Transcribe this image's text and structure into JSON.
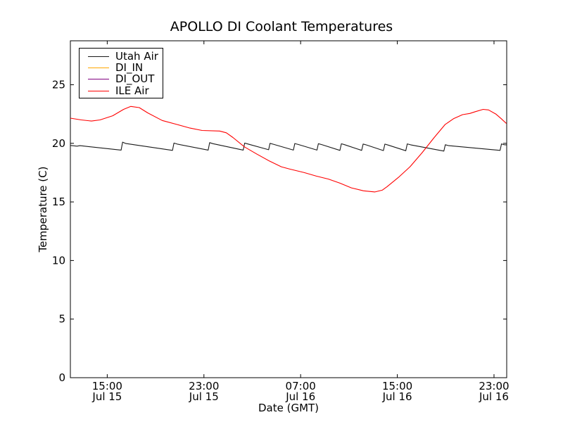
{
  "chart_data": {
    "type": "line",
    "title": "APOLLO DI Coolant Temperatures",
    "xlabel": "Date (GMT)",
    "ylabel": "Temperature (C)",
    "xlim": [
      0,
      36.1
    ],
    "ylim": [
      0,
      28.75
    ],
    "grid": false,
    "legend_position": "upper left",
    "background_color": "#ffffff",
    "spine_color": "#000000",
    "x_ticks": [
      {
        "pos": 3.05,
        "time": "15:00",
        "date": "Jul 15"
      },
      {
        "pos": 11.05,
        "time": "23:00",
        "date": "Jul 15"
      },
      {
        "pos": 19.05,
        "time": "07:00",
        "date": "Jul 16"
      },
      {
        "pos": 27.05,
        "time": "15:00",
        "date": "Jul 16"
      },
      {
        "pos": 35.05,
        "time": "23:00",
        "date": "Jul 16"
      }
    ],
    "y_ticks": [
      0,
      5,
      10,
      15,
      20,
      25
    ],
    "x_axis_note": "x values are hours from the left edge of the plot (~12:00 Jul 15 GMT)",
    "series": [
      {
        "name": "Utah Air",
        "color": "#1a1a1a",
        "points": [
          [
            0,
            19.82
          ],
          [
            0.55,
            19.76
          ],
          [
            0.8,
            19.8
          ],
          [
            4.2,
            19.42
          ],
          [
            4.32,
            20.1
          ],
          [
            4.6,
            19.98
          ],
          [
            8.45,
            19.4
          ],
          [
            8.57,
            20.02
          ],
          [
            8.85,
            19.93
          ],
          [
            11.4,
            19.42
          ],
          [
            11.52,
            20.06
          ],
          [
            11.8,
            19.97
          ],
          [
            14.3,
            19.42
          ],
          [
            14.42,
            20.02
          ],
          [
            14.7,
            19.94
          ],
          [
            16.4,
            19.45
          ],
          [
            16.52,
            20.0
          ],
          [
            16.8,
            19.92
          ],
          [
            18.45,
            19.42
          ],
          [
            18.57,
            19.98
          ],
          [
            18.85,
            19.9
          ],
          [
            20.4,
            19.42
          ],
          [
            20.52,
            19.97
          ],
          [
            20.8,
            19.89
          ],
          [
            22.3,
            19.4
          ],
          [
            22.42,
            19.96
          ],
          [
            22.7,
            19.88
          ],
          [
            24.1,
            19.4
          ],
          [
            24.22,
            19.94
          ],
          [
            24.5,
            19.86
          ],
          [
            25.9,
            19.38
          ],
          [
            26.02,
            19.93
          ],
          [
            26.3,
            19.85
          ],
          [
            27.75,
            19.37
          ],
          [
            27.87,
            19.95
          ],
          [
            28.15,
            19.87
          ],
          [
            30.9,
            19.34
          ],
          [
            31.02,
            19.88
          ],
          [
            31.3,
            19.8
          ],
          [
            35.55,
            19.4
          ],
          [
            35.67,
            19.95
          ],
          [
            35.9,
            19.88
          ],
          [
            36.07,
            19.87
          ]
        ]
      },
      {
        "name": "DI_IN",
        "color": "#ffa500",
        "points": []
      },
      {
        "name": "DI_OUT",
        "color": "#800080",
        "points": []
      },
      {
        "name": "ILE Air",
        "color": "#ff0000",
        "points": [
          [
            0,
            22.15
          ],
          [
            0.9,
            22.0
          ],
          [
            1.75,
            21.9
          ],
          [
            2.45,
            22.0
          ],
          [
            3.5,
            22.35
          ],
          [
            4.4,
            22.9
          ],
          [
            5.0,
            23.15
          ],
          [
            5.7,
            23.05
          ],
          [
            6.4,
            22.6
          ],
          [
            7.6,
            21.95
          ],
          [
            8.85,
            21.6
          ],
          [
            9.9,
            21.3
          ],
          [
            10.9,
            21.1
          ],
          [
            12.35,
            21.05
          ],
          [
            12.9,
            20.9
          ],
          [
            13.45,
            20.5
          ],
          [
            14.4,
            19.7
          ],
          [
            15.4,
            19.1
          ],
          [
            16.45,
            18.5
          ],
          [
            17.45,
            18.0
          ],
          [
            18.15,
            17.8
          ],
          [
            19.35,
            17.5
          ],
          [
            20.35,
            17.2
          ],
          [
            21.35,
            16.95
          ],
          [
            22.3,
            16.6
          ],
          [
            23.25,
            16.2
          ],
          [
            24.25,
            15.95
          ],
          [
            25.2,
            15.85
          ],
          [
            25.8,
            16.0
          ],
          [
            26.2,
            16.3
          ],
          [
            27.15,
            17.1
          ],
          [
            28.1,
            18.0
          ],
          [
            29.1,
            19.2
          ],
          [
            30.1,
            20.5
          ],
          [
            31.0,
            21.6
          ],
          [
            31.7,
            22.1
          ],
          [
            32.45,
            22.45
          ],
          [
            33.05,
            22.55
          ],
          [
            33.5,
            22.7
          ],
          [
            34.15,
            22.9
          ],
          [
            34.6,
            22.85
          ],
          [
            35.2,
            22.5
          ],
          [
            35.65,
            22.1
          ],
          [
            36.07,
            21.7
          ]
        ]
      }
    ]
  }
}
